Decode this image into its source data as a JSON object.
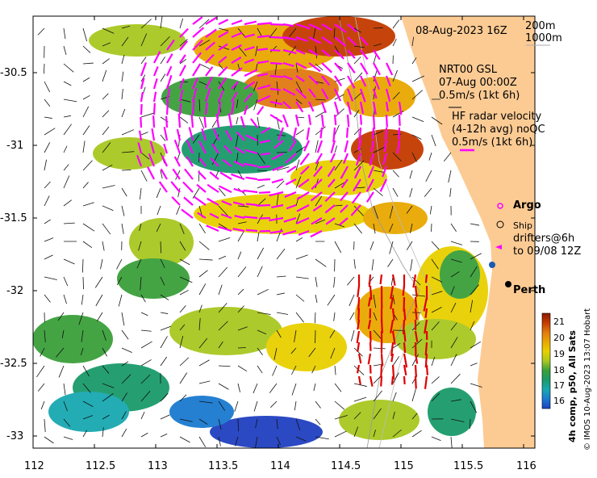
{
  "map": {
    "date_label": "08-Aug-2023 16Z",
    "isobath_labels": [
      "200m",
      "1000m"
    ],
    "model_labels": [
      "NRT00 GSL",
      "07-Aug 00:00Z",
      "0.5m/s (1kt 6h)"
    ],
    "radar_labels": [
      "HF radar velocity",
      "(4-12h avg) noQC",
      "0.5m/s (1kt 6h)"
    ],
    "legend": {
      "argo": "Argo",
      "ship": "Ship",
      "drifters": "drifters@6h",
      "drifters_to": "to 09/08 12Z"
    },
    "city": "Perth",
    "credit": "© IMOS 10-Aug-2023 13:07 Hobart",
    "colorbar": {
      "label": "4h comp, p50, All Sats",
      "ticks": [
        "21",
        "20",
        "19",
        "18",
        "17",
        "16"
      ],
      "colors": [
        "#8b1a00",
        "#c43b00",
        "#e07a10",
        "#e8a800",
        "#e8d000",
        "#a8c820",
        "#3aa03a",
        "#1a9a6a",
        "#18a8b0",
        "#1a7ad0",
        "#2040c0"
      ]
    },
    "x_ticks": [
      "112",
      "112.5",
      "113",
      "113.5",
      "114",
      "114.5",
      "115",
      "115.5",
      "116"
    ],
    "y_ticks": [
      "-30.5",
      "-31",
      "-31.5",
      "-32",
      "-32.5",
      "-33"
    ],
    "colors": {
      "land": "#fccb94",
      "model_vectors": "#ff00ff",
      "radar_vectors": "#e00000",
      "argo": "#ff00ff"
    }
  }
}
